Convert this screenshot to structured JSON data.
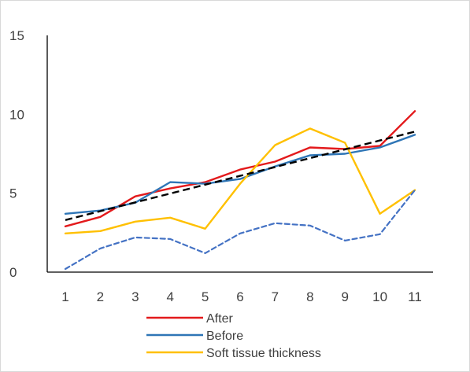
{
  "chart_data": {
    "type": "line",
    "title": "",
    "xlabel": "",
    "ylabel": "",
    "x": [
      1,
      2,
      3,
      4,
      5,
      6,
      7,
      8,
      9,
      10,
      11
    ],
    "ylim": [
      0,
      15
    ],
    "yticks": [
      0,
      5,
      10,
      15
    ],
    "grid": false,
    "legend_position": "bottom",
    "series": [
      {
        "name": "After",
        "color": "#e31a1c",
        "style": "solid",
        "values": [
          2.9,
          3.5,
          4.8,
          5.3,
          5.7,
          6.5,
          7.0,
          7.9,
          7.8,
          8.0,
          10.2
        ]
      },
      {
        "name": "Before",
        "color": "#2e75b6",
        "style": "solid",
        "values": [
          3.7,
          3.9,
          4.4,
          5.7,
          5.6,
          5.9,
          6.7,
          7.4,
          7.5,
          7.9,
          8.7
        ]
      },
      {
        "name": "Soft tissue thickness",
        "color": "#ffc000",
        "style": "solid",
        "values": [
          2.45,
          2.6,
          3.2,
          3.45,
          2.75,
          5.6,
          8.05,
          9.1,
          8.2,
          3.7,
          5.2
        ]
      },
      {
        "name": "",
        "color": "#4472c4",
        "style": "dashed",
        "values": [
          0.2,
          1.5,
          2.2,
          2.1,
          1.2,
          2.45,
          3.1,
          2.95,
          2.0,
          2.4,
          5.2
        ]
      },
      {
        "name": "",
        "color": "#000000",
        "style": "dashed-trend",
        "values": [
          3.3,
          3.86,
          4.42,
          4.98,
          5.54,
          6.1,
          6.66,
          7.22,
          7.78,
          8.34,
          8.9
        ]
      }
    ]
  }
}
